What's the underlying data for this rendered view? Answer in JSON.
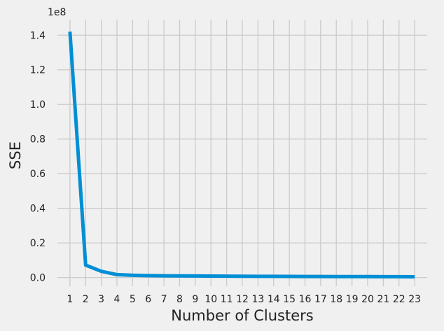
{
  "chart_data": {
    "type": "line",
    "title": "",
    "xlabel": "Number of Clusters",
    "ylabel": "SSE",
    "y_offset_label": "1e8",
    "x": [
      1,
      2,
      3,
      4,
      5,
      6,
      7,
      8,
      9,
      10,
      11,
      12,
      13,
      14,
      15,
      16,
      17,
      18,
      19,
      20,
      21,
      22,
      23
    ],
    "x_tick_labels": [
      "1",
      "2",
      "3",
      "4",
      "5",
      "6",
      "7",
      "8",
      "9",
      "10",
      "11",
      "12",
      "13",
      "14",
      "15",
      "16",
      "17",
      "18",
      "19",
      "20",
      "21",
      "22",
      "23"
    ],
    "series": [
      {
        "values": [
          142000000,
          7200000,
          3600000,
          1700000,
          1300000,
          1100000,
          1000000,
          950000,
          900000,
          850000,
          800000,
          760000,
          720000,
          690000,
          660000,
          630000,
          600000,
          580000,
          560000,
          540000,
          520000,
          500000,
          480000
        ]
      }
    ],
    "y_ticks": [
      0,
      20000000,
      40000000,
      60000000,
      80000000,
      100000000,
      120000000,
      140000000
    ],
    "y_tick_labels": [
      "0.0",
      "0.2",
      "0.4",
      "0.6",
      "0.8",
      "1.0",
      "1.2",
      "1.4"
    ],
    "xlim": [
      0.2,
      23.8
    ],
    "ylim": [
      -5000000,
      149000000
    ],
    "grid": true,
    "colors": {
      "line": "#008fd5",
      "grid": "#cbcbcb",
      "background": "#f0f0f0"
    }
  }
}
